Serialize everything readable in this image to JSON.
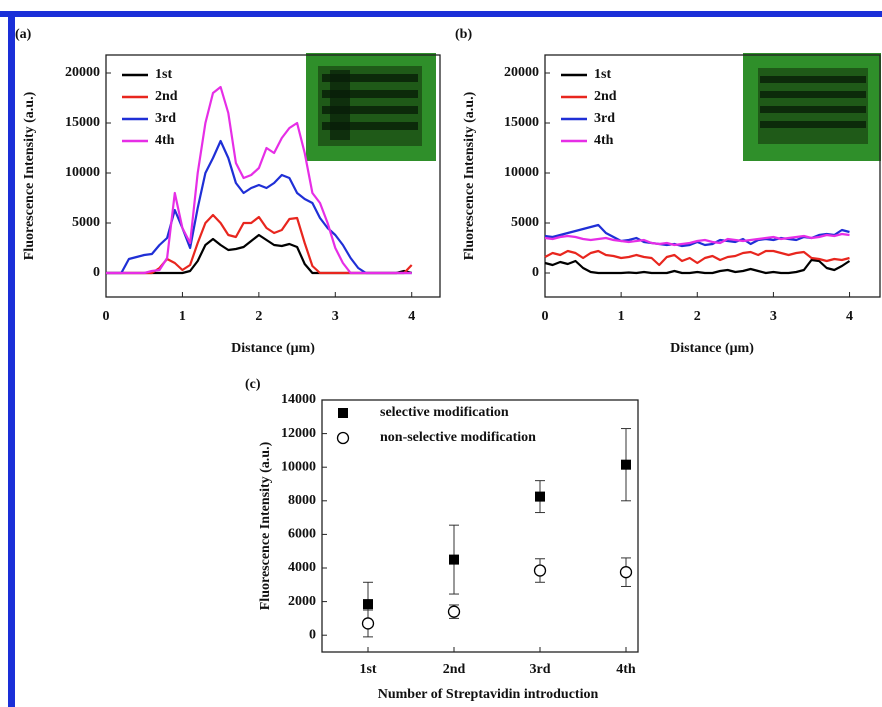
{
  "chart_data": [
    {
      "type": "line",
      "panel_label": "(a)",
      "x_label": "Distance (μm)",
      "y_label": "Fluorescence Intensity (a.u.)",
      "x": [
        0,
        0.1,
        0.2,
        0.3,
        0.4,
        0.5,
        0.6,
        0.7,
        0.8,
        0.9,
        1,
        1.1,
        1.2,
        1.3,
        1.4,
        1.5,
        1.6,
        1.7,
        1.8,
        1.9,
        2,
        2.1,
        2.2,
        2.3,
        2.4,
        2.5,
        2.6,
        2.7,
        2.8,
        2.9,
        3,
        3.1,
        3.2,
        3.3,
        3.4,
        3.5,
        3.6,
        3.7,
        3.8,
        3.9,
        4
      ],
      "series": [
        {
          "name": "1st",
          "color": "#000000",
          "values": [
            0,
            0,
            0,
            0,
            0,
            0,
            0,
            0,
            0,
            0,
            0,
            200,
            1200,
            2800,
            3400,
            2800,
            2300,
            2400,
            2600,
            3200,
            3800,
            3300,
            2800,
            2700,
            2900,
            2600,
            900,
            0,
            0,
            0,
            0,
            0,
            0,
            0,
            0,
            0,
            0,
            0,
            0,
            200,
            0
          ]
        },
        {
          "name": "2nd",
          "color": "#e8261e",
          "values": [
            0,
            0,
            0,
            0,
            0,
            0,
            0,
            500,
            1400,
            1000,
            300,
            800,
            3000,
            5000,
            5800,
            5000,
            3800,
            3600,
            5000,
            5000,
            5600,
            4500,
            4000,
            4300,
            5400,
            5500,
            3000,
            700,
            0,
            0,
            0,
            0,
            0,
            0,
            0,
            0,
            0,
            0,
            0,
            0,
            800
          ]
        },
        {
          "name": "3rd",
          "color": "#1f2fd6",
          "values": [
            0,
            0,
            0,
            1400,
            1600,
            1800,
            1900,
            2800,
            3500,
            6300,
            4500,
            2500,
            6500,
            10000,
            11500,
            13200,
            11500,
            9000,
            8000,
            8500,
            8800,
            8500,
            9000,
            9800,
            9500,
            8000,
            7400,
            7000,
            5500,
            4500,
            3800,
            2800,
            1500,
            500,
            0,
            0,
            0,
            0,
            0,
            0,
            0
          ]
        },
        {
          "name": "4th",
          "color": "#e62ee6",
          "values": [
            0,
            0,
            0,
            0,
            0,
            0,
            200,
            300,
            1500,
            8000,
            4500,
            3000,
            10000,
            15000,
            18000,
            18600,
            16000,
            11000,
            9500,
            9800,
            10500,
            12500,
            12000,
            13500,
            14500,
            15000,
            12000,
            8000,
            7000,
            5000,
            2500,
            1000,
            0,
            0,
            0,
            0,
            0,
            0,
            0,
            0,
            0
          ]
        }
      ],
      "xlim": [
        0,
        4.37
      ],
      "xticks": [
        0,
        1,
        2,
        3,
        4
      ],
      "ylim": [
        -2400,
        21800
      ],
      "yticks": [
        0,
        5000,
        10000,
        15000,
        20000
      ]
    },
    {
      "type": "line",
      "panel_label": "(b)",
      "x_label": "Distance (μm)",
      "y_label": "Fluorescence Intensity (a.u.)",
      "x": [
        0,
        0.1,
        0.2,
        0.3,
        0.4,
        0.5,
        0.6,
        0.7,
        0.8,
        0.9,
        1,
        1.1,
        1.2,
        1.3,
        1.4,
        1.5,
        1.6,
        1.7,
        1.8,
        1.9,
        2,
        2.1,
        2.2,
        2.3,
        2.4,
        2.5,
        2.6,
        2.7,
        2.8,
        2.9,
        3,
        3.1,
        3.2,
        3.3,
        3.4,
        3.5,
        3.6,
        3.7,
        3.8,
        3.9,
        4
      ],
      "series": [
        {
          "name": "1st",
          "color": "#000000",
          "values": [
            1000,
            800,
            1100,
            900,
            1200,
            500,
            100,
            0,
            0,
            0,
            0,
            50,
            0,
            100,
            0,
            0,
            0,
            200,
            0,
            0,
            100,
            0,
            0,
            200,
            300,
            100,
            200,
            400,
            200,
            0,
            100,
            0,
            0,
            100,
            300,
            1300,
            1200,
            500,
            300,
            700,
            1200
          ]
        },
        {
          "name": "2nd",
          "color": "#e8261e",
          "values": [
            1600,
            2000,
            1800,
            2200,
            2000,
            1500,
            2000,
            2200,
            1800,
            1700,
            1500,
            1600,
            1800,
            1600,
            1500,
            800,
            1600,
            1800,
            1200,
            1500,
            1000,
            1500,
            1700,
            1300,
            1600,
            1700,
            2000,
            2100,
            1800,
            2200,
            2200,
            2000,
            1800,
            2000,
            2100,
            1500,
            1400,
            1200,
            1400,
            1300,
            1500
          ]
        },
        {
          "name": "3rd",
          "color": "#1f2fd6",
          "values": [
            3700,
            3600,
            3800,
            4000,
            4200,
            4400,
            4600,
            4800,
            4000,
            3600,
            3200,
            3300,
            3500,
            3100,
            3000,
            2900,
            2800,
            2900,
            2700,
            2800,
            3100,
            2800,
            2900,
            3300,
            3200,
            3100,
            3400,
            2900,
            3300,
            3400,
            3300,
            3500,
            3400,
            3300,
            3600,
            3500,
            3800,
            3900,
            3800,
            4300,
            4100
          ]
        },
        {
          "name": "4th",
          "color": "#e62ee6",
          "values": [
            3500,
            3400,
            3600,
            3700,
            3600,
            3400,
            3300,
            3400,
            3500,
            3300,
            3200,
            3100,
            3200,
            3300,
            3000,
            2900,
            3000,
            2800,
            2900,
            3000,
            3200,
            3300,
            3100,
            3000,
            3400,
            3300,
            3200,
            3300,
            3400,
            3500,
            3600,
            3400,
            3500,
            3600,
            3700,
            3500,
            3600,
            3800,
            3700,
            3900,
            3800
          ]
        }
      ],
      "xlim": [
        0,
        4.4
      ],
      "xticks": [
        0,
        1,
        2,
        3,
        4
      ],
      "ylim": [
        -2400,
        21800
      ],
      "yticks": [
        0,
        5000,
        10000,
        15000,
        20000
      ]
    },
    {
      "type": "errorbar",
      "panel_label": "(c)",
      "x_label": "Number of Streptavidin introduction",
      "y_label": "Fluorescence Intensity (a.u.)",
      "categories": [
        "1st",
        "2nd",
        "3rd",
        "4th"
      ],
      "series": [
        {
          "name": "selective modification",
          "marker": "filled-square",
          "color": "#000000",
          "values": [
            1850,
            4500,
            8250,
            10150
          ],
          "errors": [
            1300,
            2050,
            950,
            2150
          ]
        },
        {
          "name": "non-selective modification",
          "marker": "open-circle",
          "color": "#000000",
          "values": [
            700,
            1400,
            3850,
            3750
          ],
          "errors": [
            800,
            400,
            700,
            850
          ]
        }
      ],
      "ylim": [
        -1000,
        14000
      ],
      "yticks": [
        0,
        2000,
        4000,
        6000,
        8000,
        10000,
        12000,
        14000
      ]
    }
  ]
}
